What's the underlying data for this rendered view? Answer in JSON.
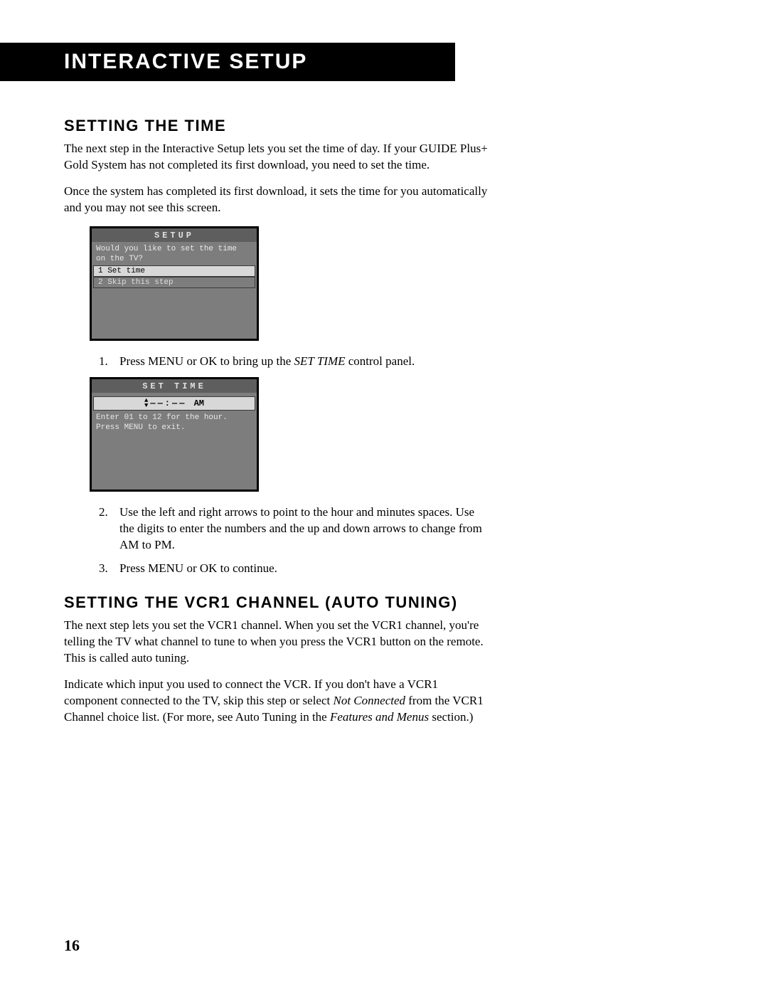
{
  "header": {
    "title": "INTERACTIVE SETUP"
  },
  "section1": {
    "heading": "SETTING THE TIME",
    "para1": "The next step in the Interactive Setup lets you set the time of day. If your GUIDE Plus+ Gold System has not completed its first download, you need to set the time.",
    "para2": "Once the system has completed its first download, it sets the time for you automatically and you may not see this screen."
  },
  "setup_screen": {
    "title": "SETUP",
    "question_l1": "Would you like to set the time",
    "question_l2": "on the TV?",
    "opt1": "1 Set time",
    "opt2": "2 Skip this step",
    "bg_color": "#7d7d7d",
    "titlebar_color": "#5e5e5e",
    "selected_bg": "#d8d8d8"
  },
  "step1": {
    "pre": "Press MENU or OK to bring up the ",
    "em": "SET TIME",
    "post": " control panel."
  },
  "settime_screen": {
    "title": "SET TIME",
    "entry_dash": "—",
    "entry_colon": ":",
    "entry_ampm": "AM",
    "hint_l1": "Enter 01 to 12 for the hour.",
    "hint_l2": "Press MENU to exit."
  },
  "step2": "Use the left and right arrows to point to the hour and minutes spaces. Use the digits to enter the numbers and the up and down arrows to change from AM to PM.",
  "step3": "Press  MENU or OK to continue.",
  "section2": {
    "heading": "SETTING THE  VCR1 CHANNEL (AUTO TUNING)",
    "para1": "The next step lets you set the VCR1 channel. When you set the VCR1 channel, you're telling the TV what channel to tune to when you press the VCR1 button on the remote. This is called auto tuning.",
    "para2_a": "Indicate which input you used to connect the VCR.  If you don't have a VCR1 component connected to the TV, skip this step or select ",
    "para2_em1": "Not Connected",
    "para2_b": " from the VCR1 Channel choice list. (For more, see Auto Tuning in the ",
    "para2_em2": "Features and Menus",
    "para2_c": " section.)"
  },
  "page_number": "16"
}
